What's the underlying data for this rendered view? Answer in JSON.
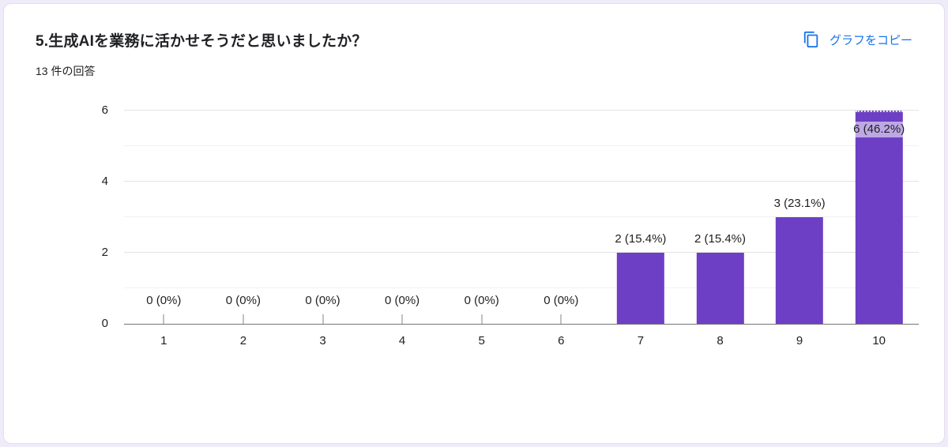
{
  "page": {
    "background_color": "#f0ebf8",
    "card_background_color": "#ffffff"
  },
  "header": {
    "title": "5.生成AIを業務に活かせそうだと思いましたか？",
    "response_count": "13 件の回答",
    "copy_label": "グラフをコピー",
    "link_color": "#1a73e8"
  },
  "chart_data": {
    "type": "bar",
    "title": "",
    "xlabel": "",
    "ylabel": "",
    "categories": [
      "1",
      "2",
      "3",
      "4",
      "5",
      "6",
      "7",
      "8",
      "9",
      "10"
    ],
    "values": [
      0,
      0,
      0,
      0,
      0,
      0,
      2,
      2,
      3,
      6
    ],
    "labels": [
      "0 (0%)",
      "0 (0%)",
      "0 (0%)",
      "0 (0%)",
      "0 (0%)",
      "0 (0%)",
      "2 (15.4%)",
      "2 (15.4%)",
      "3 (23.1%)",
      "6 (46.2%)"
    ],
    "ylim": [
      0,
      6
    ],
    "yticks": [
      0,
      2,
      4,
      6
    ],
    "grid": true,
    "legend": "none",
    "bar_color": "#6d3fc5"
  }
}
